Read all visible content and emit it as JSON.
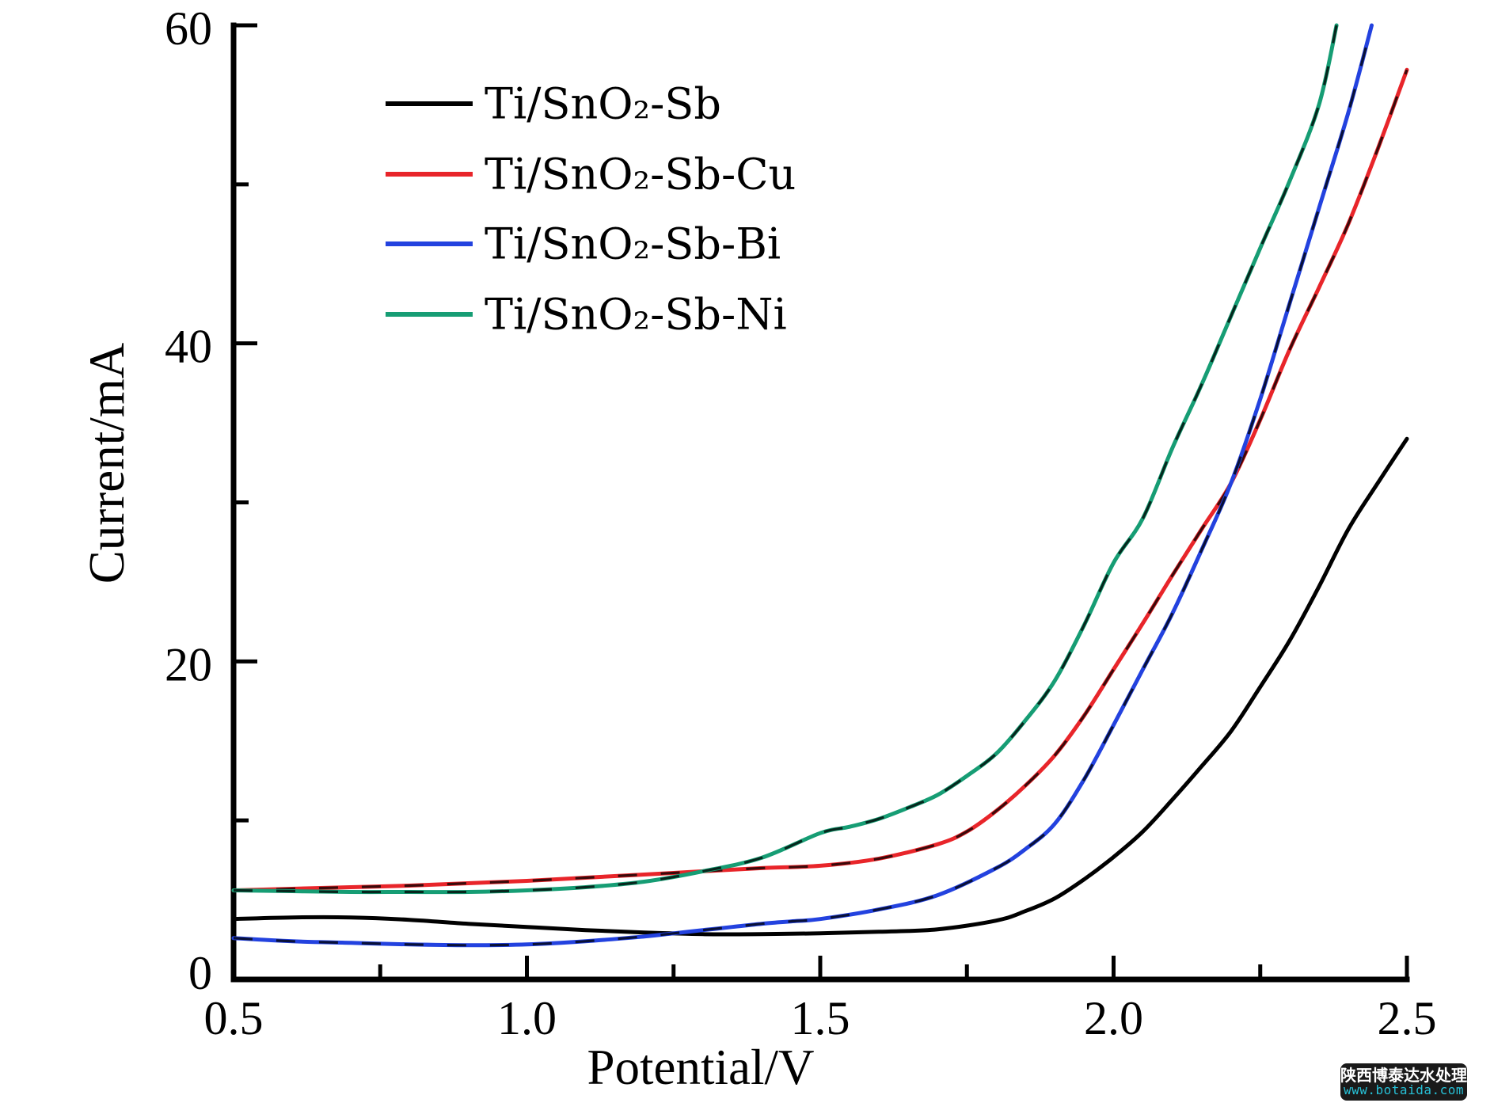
{
  "watermark": {
    "line1": "陕西博泰达水处理",
    "line2": "www.botaida.com",
    "bg": "#1a1a1a",
    "line1_color": "#ffffff",
    "line2_color": "#27c0d6"
  },
  "chart_data": {
    "type": "line",
    "title": "",
    "xlabel": "Potential/V",
    "ylabel": "Current/mA",
    "xlim": [
      0.5,
      2.5
    ],
    "ylim": [
      0,
      60
    ],
    "grid": false,
    "legend_position": "upper-left-inside",
    "x_ticks": [
      {
        "value": 0.5,
        "label": "0.5"
      },
      {
        "value": 1.0,
        "label": "1.0"
      },
      {
        "value": 1.5,
        "label": "1.5"
      },
      {
        "value": 2.0,
        "label": "2.0"
      },
      {
        "value": 2.5,
        "label": "2.5"
      }
    ],
    "x_minor_ticks": [
      0.75,
      1.25,
      1.75,
      2.25
    ],
    "y_ticks": [
      {
        "value": 0,
        "label": "0"
      },
      {
        "value": 20,
        "label": "20"
      },
      {
        "value": 40,
        "label": "40"
      },
      {
        "value": 60,
        "label": "60"
      }
    ],
    "y_minor_ticks": [
      10,
      30,
      50
    ],
    "series": [
      {
        "name": "Ti/SnO₂-Sb",
        "color": "#000000",
        "points": [
          [
            0.5,
            3.8
          ],
          [
            0.6,
            3.9
          ],
          [
            0.7,
            3.9
          ],
          [
            0.8,
            3.75
          ],
          [
            0.9,
            3.5
          ],
          [
            1.0,
            3.3
          ],
          [
            1.1,
            3.1
          ],
          [
            1.2,
            2.95
          ],
          [
            1.3,
            2.85
          ],
          [
            1.4,
            2.85
          ],
          [
            1.5,
            2.9
          ],
          [
            1.6,
            3.0
          ],
          [
            1.7,
            3.15
          ],
          [
            1.8,
            3.7
          ],
          [
            1.85,
            4.3
          ],
          [
            1.9,
            5.1
          ],
          [
            1.95,
            6.3
          ],
          [
            2.0,
            7.7
          ],
          [
            2.05,
            9.3
          ],
          [
            2.1,
            11.3
          ],
          [
            2.15,
            13.4
          ],
          [
            2.2,
            15.6
          ],
          [
            2.25,
            18.4
          ],
          [
            2.3,
            21.3
          ],
          [
            2.35,
            24.7
          ],
          [
            2.4,
            28.3
          ],
          [
            2.45,
            31.2
          ],
          [
            2.5,
            34.0
          ]
        ]
      },
      {
        "name": "Ti/SnO₂-Sb-Cu",
        "color": "#e8252a",
        "points": [
          [
            0.5,
            5.6
          ],
          [
            0.6,
            5.7
          ],
          [
            0.7,
            5.8
          ],
          [
            0.8,
            5.9
          ],
          [
            0.9,
            6.05
          ],
          [
            1.0,
            6.2
          ],
          [
            1.1,
            6.4
          ],
          [
            1.2,
            6.6
          ],
          [
            1.3,
            6.8
          ],
          [
            1.4,
            7.0
          ],
          [
            1.5,
            7.15
          ],
          [
            1.6,
            7.6
          ],
          [
            1.7,
            8.5
          ],
          [
            1.75,
            9.3
          ],
          [
            1.8,
            10.6
          ],
          [
            1.85,
            12.2
          ],
          [
            1.9,
            14.1
          ],
          [
            1.95,
            16.6
          ],
          [
            2.0,
            19.5
          ],
          [
            2.05,
            22.4
          ],
          [
            2.1,
            25.4
          ],
          [
            2.15,
            28.3
          ],
          [
            2.2,
            31.2
          ],
          [
            2.25,
            35.2
          ],
          [
            2.3,
            39.6
          ],
          [
            2.35,
            43.5
          ],
          [
            2.4,
            47.5
          ],
          [
            2.45,
            52.2
          ],
          [
            2.5,
            57.2
          ]
        ]
      },
      {
        "name": "Ti/SnO₂-Sb-Bi",
        "color": "#2342df",
        "points": [
          [
            0.5,
            2.6
          ],
          [
            0.6,
            2.4
          ],
          [
            0.7,
            2.3
          ],
          [
            0.8,
            2.2
          ],
          [
            0.9,
            2.15
          ],
          [
            1.0,
            2.2
          ],
          [
            1.1,
            2.4
          ],
          [
            1.2,
            2.7
          ],
          [
            1.25,
            2.9
          ],
          [
            1.3,
            3.1
          ],
          [
            1.35,
            3.3
          ],
          [
            1.4,
            3.5
          ],
          [
            1.45,
            3.65
          ],
          [
            1.5,
            3.8
          ],
          [
            1.6,
            4.4
          ],
          [
            1.7,
            5.3
          ],
          [
            1.8,
            7.0
          ],
          [
            1.85,
            8.2
          ],
          [
            1.9,
            9.8
          ],
          [
            1.95,
            12.6
          ],
          [
            2.0,
            16.0
          ],
          [
            2.05,
            19.5
          ],
          [
            2.1,
            23.0
          ],
          [
            2.15,
            27.0
          ],
          [
            2.2,
            31.2
          ],
          [
            2.25,
            36.5
          ],
          [
            2.3,
            42.5
          ],
          [
            2.35,
            48.5
          ],
          [
            2.4,
            54.5
          ],
          [
            2.44,
            60.0
          ]
        ]
      },
      {
        "name": "Ti/SnO₂-Sb-Ni",
        "color": "#169d74",
        "points": [
          [
            0.5,
            5.6
          ],
          [
            0.6,
            5.55
          ],
          [
            0.7,
            5.5
          ],
          [
            0.8,
            5.5
          ],
          [
            0.9,
            5.5
          ],
          [
            1.0,
            5.6
          ],
          [
            1.1,
            5.8
          ],
          [
            1.2,
            6.15
          ],
          [
            1.3,
            6.8
          ],
          [
            1.4,
            7.65
          ],
          [
            1.5,
            9.2
          ],
          [
            1.55,
            9.6
          ],
          [
            1.6,
            10.1
          ],
          [
            1.65,
            10.8
          ],
          [
            1.7,
            11.6
          ],
          [
            1.75,
            12.8
          ],
          [
            1.8,
            14.2
          ],
          [
            1.85,
            16.3
          ],
          [
            1.9,
            18.8
          ],
          [
            1.95,
            22.3
          ],
          [
            2.0,
            26.2
          ],
          [
            2.05,
            29.0
          ],
          [
            2.1,
            33.4
          ],
          [
            2.15,
            37.4
          ],
          [
            2.2,
            41.7
          ],
          [
            2.25,
            46.0
          ],
          [
            2.3,
            50.2
          ],
          [
            2.35,
            55.0
          ],
          [
            2.38,
            60.0
          ]
        ]
      }
    ]
  }
}
